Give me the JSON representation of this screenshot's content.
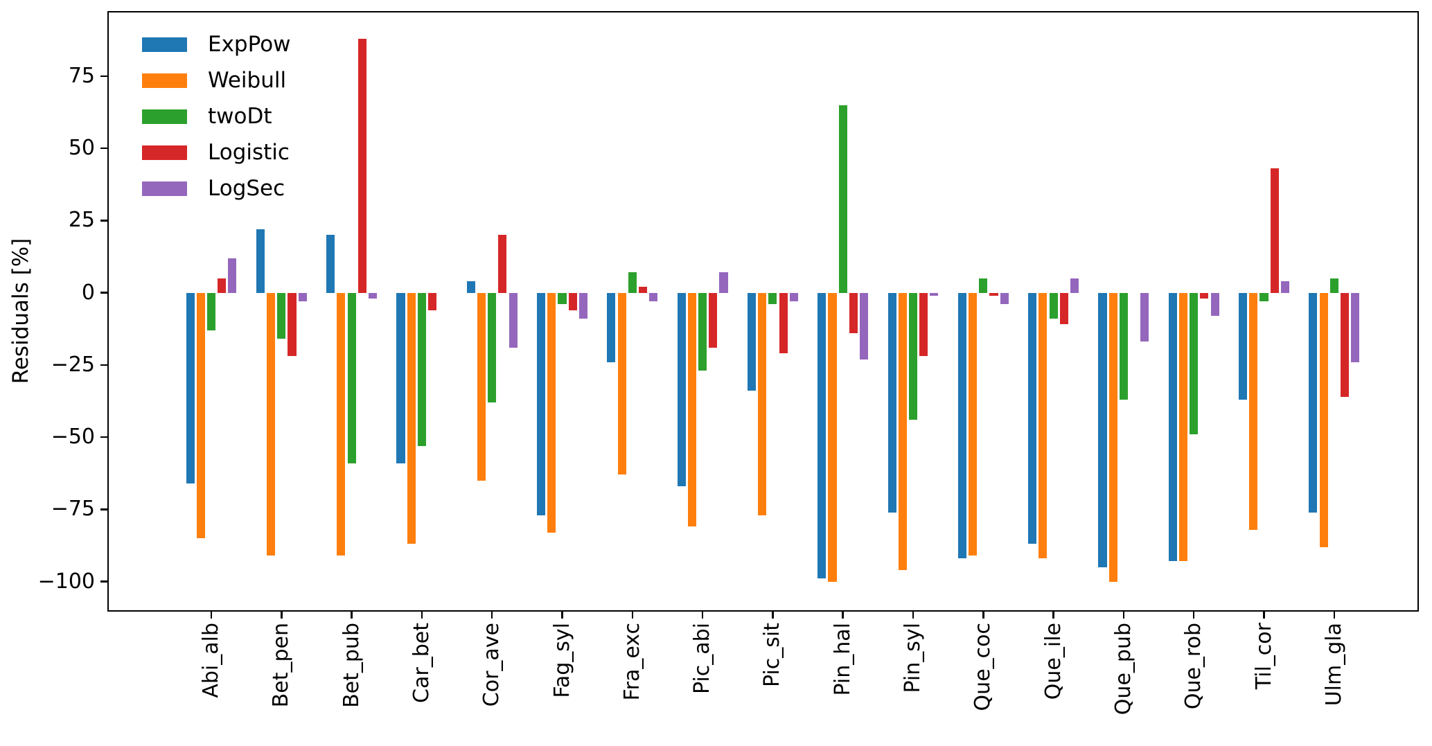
{
  "chart_data": {
    "type": "bar",
    "title": "",
    "xlabel": "",
    "ylabel": "Residuals [%]",
    "grid": false,
    "legend_position": "upper left",
    "ylim": [
      -110.4,
      97.5
    ],
    "ytick_labels": [
      "75",
      "50",
      "25",
      "0",
      "−25",
      "−50",
      "−75",
      "−100"
    ],
    "ytick_values": [
      75,
      50,
      25,
      0,
      -25,
      -50,
      -75,
      -100
    ],
    "categories": [
      "Abi_alb",
      "Bet_pen",
      "Bet_pub",
      "Car_bet",
      "Cor_ave",
      "Fag_syl",
      "Fra_exc",
      "Pic_abi",
      "Pic_sit",
      "Pin_hal",
      "Pin_syl",
      "Que_coc",
      "Que_ile",
      "Que_pub",
      "Que_rob",
      "Til_cor",
      "Ulm_gla"
    ],
    "series": [
      {
        "name": "ExpPow",
        "color": "#1f77b4",
        "values": [
          -66,
          22,
          20,
          -59,
          4,
          -77,
          -24,
          -67,
          -34,
          -99,
          -76,
          -92,
          -87,
          -95,
          -93,
          -37,
          -76
        ]
      },
      {
        "name": "Weibull",
        "color": "#ff7f0e",
        "values": [
          -85,
          -91,
          -91,
          -87,
          -65,
          -83,
          -63,
          -81,
          -77,
          -100,
          -96,
          -91,
          -92,
          -100,
          -93,
          -82,
          -88
        ]
      },
      {
        "name": "twoDt",
        "color": "#2ca02c",
        "values": [
          -13,
          -16,
          -59,
          -53,
          -38,
          -4,
          7,
          -27,
          -4,
          65,
          -44,
          5,
          -9,
          -37,
          -49,
          -3,
          5
        ]
      },
      {
        "name": "Logistic",
        "color": "#d62728",
        "values": [
          5,
          -22,
          88,
          -6,
          20,
          -6,
          2,
          -19,
          -21,
          -14,
          -22,
          -1,
          -11,
          0,
          -2,
          43,
          -36
        ]
      },
      {
        "name": "LogSec",
        "color": "#9467bd",
        "values": [
          12,
          -3,
          -2,
          0,
          -19,
          -9,
          -3,
          7,
          -3,
          -23,
          -1,
          -4,
          5,
          -17,
          -8,
          4,
          -24
        ]
      }
    ]
  }
}
